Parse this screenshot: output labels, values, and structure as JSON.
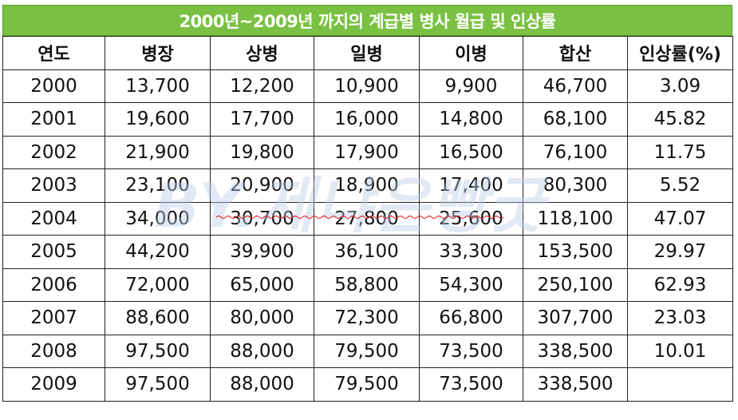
{
  "title": "2000년~2009년 까지의 계급별 병사 월급 및 인상률",
  "columns": [
    "연도",
    "병장",
    "상병",
    "일병",
    "이병",
    "합산",
    "인상률(%)"
  ],
  "rows": [
    [
      "2000",
      "13,700",
      "12,200",
      "10,900",
      "9,900",
      "46,700",
      "3.09"
    ],
    [
      "2001",
      "19,600",
      "17,700",
      "16,000",
      "14,800",
      "68,100",
      "45.82"
    ],
    [
      "2002",
      "21,900",
      "19,800",
      "17,900",
      "16,500",
      "76,100",
      "11.75"
    ],
    [
      "2003",
      "23,100",
      "20,900",
      "18,900",
      "17,400",
      "80,300",
      "5.52"
    ],
    [
      "2004",
      "34,000",
      "30,700",
      "27,800",
      "25,600",
      "118,100",
      "47.07"
    ],
    [
      "2005",
      "44,200",
      "39,900",
      "36,100",
      "33,300",
      "153,500",
      "29.97"
    ],
    [
      "2006",
      "72,000",
      "65,000",
      "58,800",
      "54,300",
      "250,100",
      "62.93"
    ],
    [
      "2007",
      "88,600",
      "80,000",
      "72,300",
      "66,800",
      "307,700",
      "23.03"
    ],
    [
      "2008",
      "97,500",
      "88,000",
      "79,500",
      "73,500",
      "338,500",
      "10.01"
    ],
    [
      "2009",
      "97,500",
      "88,000",
      "79,500",
      "73,500",
      "338,500",
      ""
    ]
  ],
  "watermark": "BY.제냐은빵굿",
  "colors": {
    "title_background": "#7ac143",
    "title_text": "#ffffff",
    "border": "#222222",
    "watermark": "#b9cde6",
    "squiggle": "#e03030"
  }
}
